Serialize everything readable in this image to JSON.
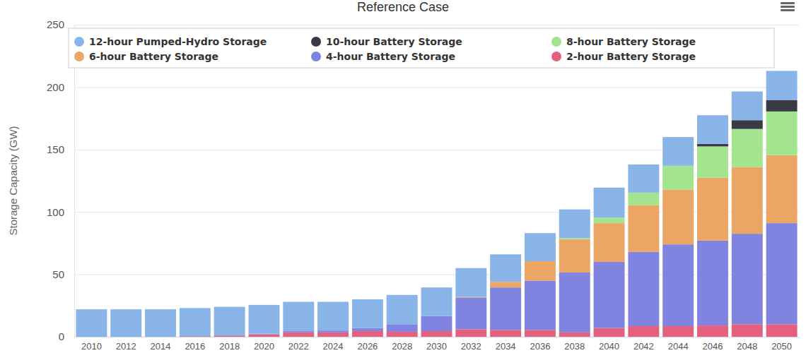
{
  "chart_data": {
    "type": "bar",
    "title": "Reference Case",
    "y_label": "Storage Capacity (GW)",
    "stacked": true,
    "grid": true,
    "legend": "top",
    "categories": [
      "2010",
      "2012",
      "2014",
      "2016",
      "2018",
      "2020",
      "2022",
      "2024",
      "2026",
      "2028",
      "2030",
      "2032",
      "2034",
      "2036",
      "2038",
      "2040",
      "2042",
      "2044",
      "2046",
      "2048",
      "2050"
    ],
    "ylim": [
      0,
      250
    ],
    "yticks": [
      0,
      50,
      100,
      150,
      200,
      250
    ],
    "series": [
      {
        "name": "12-hour Pumped-Hydro Storage",
        "color": "#88b4e7",
        "values": [
          22,
          22,
          22,
          22.5,
          23,
          23,
          23.5,
          23,
          23,
          23.5,
          23,
          23,
          22,
          22.5,
          23,
          24,
          22.5,
          23,
          23,
          23,
          23.5
        ]
      },
      {
        "name": "10-hour Battery Storage",
        "color": "#3a3a44",
        "values": [
          0,
          0,
          0,
          0,
          0,
          0,
          0,
          0,
          0,
          0,
          0,
          0,
          0,
          0,
          0,
          0,
          0,
          0,
          2,
          7,
          9
        ]
      },
      {
        "name": "8-hour Battery Storage",
        "color": "#a3e48f",
        "values": [
          0,
          0,
          0,
          0,
          0,
          0,
          0,
          0,
          0,
          0,
          0,
          0,
          0,
          0,
          1,
          4.5,
          10,
          19,
          25,
          30.5,
          35
        ]
      },
      {
        "name": "6-hour Battery Storage",
        "color": "#eba564",
        "values": [
          0,
          0,
          0,
          0,
          0,
          0,
          0,
          0,
          0,
          0,
          0,
          0.5,
          4.5,
          15.5,
          26.5,
          31,
          37.5,
          44,
          50.5,
          53.5,
          54.5
        ]
      },
      {
        "name": "4-hour Battery Storage",
        "color": "#8083e0",
        "values": [
          0,
          0,
          0,
          0,
          0,
          0.5,
          1,
          1.5,
          2.5,
          6,
          12,
          25.5,
          34,
          39.5,
          48,
          53,
          59.5,
          65.5,
          68,
          72.5,
          81
        ]
      },
      {
        "name": "2-hour Battery Storage",
        "color": "#e4607c",
        "values": [
          0,
          0,
          0,
          0.5,
          1,
          2,
          3.5,
          3.5,
          4.5,
          4,
          4.5,
          6,
          5.5,
          5.5,
          3.5,
          7,
          8.5,
          8.5,
          9,
          10,
          10
        ]
      }
    ]
  }
}
